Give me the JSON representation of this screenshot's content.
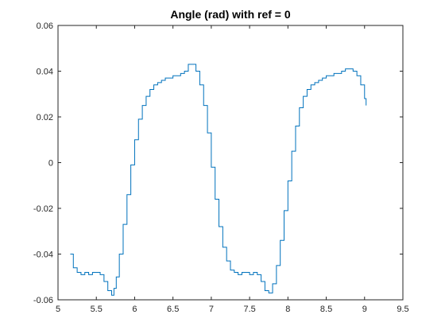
{
  "chart_data": {
    "type": "line",
    "title": "Angle (rad) with ref = 0",
    "xlabel": "",
    "ylabel": "",
    "xlim": [
      5,
      9.5
    ],
    "ylim": [
      -0.06,
      0.06
    ],
    "xticks": [
      5,
      5.5,
      6,
      6.5,
      7,
      7.5,
      8,
      8.5,
      9,
      9.5
    ],
    "xtick_labels": [
      "5",
      "5.5",
      "6",
      "6.5",
      "7",
      "7.5",
      "8",
      "8.5",
      "9",
      "9.5"
    ],
    "yticks": [
      -0.06,
      -0.04,
      -0.02,
      0,
      0.02,
      0.04,
      0.06
    ],
    "ytick_labels": [
      "-0.06",
      "-0.04",
      "-0.02",
      "0",
      "0.02",
      "0.04",
      "0.06"
    ],
    "grid": false,
    "legend": "none",
    "series": [
      {
        "color": "#0072BD",
        "x": [
          5.16,
          5.2,
          5.25,
          5.3,
          5.35,
          5.4,
          5.45,
          5.5,
          5.55,
          5.6,
          5.65,
          5.7,
          5.73,
          5.76,
          5.8,
          5.85,
          5.9,
          5.95,
          6.0,
          6.05,
          6.1,
          6.15,
          6.2,
          6.25,
          6.3,
          6.35,
          6.4,
          6.45,
          6.5,
          6.55,
          6.6,
          6.65,
          6.7,
          6.75,
          6.8,
          6.85,
          6.9,
          6.95,
          7.0,
          7.05,
          7.1,
          7.15,
          7.2,
          7.25,
          7.3,
          7.35,
          7.4,
          7.45,
          7.5,
          7.55,
          7.6,
          7.65,
          7.7,
          7.75,
          7.8,
          7.85,
          7.9,
          7.95,
          8.0,
          8.05,
          8.1,
          8.15,
          8.2,
          8.25,
          8.3,
          8.35,
          8.4,
          8.45,
          8.5,
          8.55,
          8.6,
          8.65,
          8.7,
          8.75,
          8.8,
          8.85,
          8.9,
          8.95,
          9.0,
          9.02
        ],
        "y": [
          -0.04,
          -0.046,
          -0.048,
          -0.049,
          -0.048,
          -0.049,
          -0.048,
          -0.048,
          -0.049,
          -0.052,
          -0.056,
          -0.058,
          -0.055,
          -0.05,
          -0.04,
          -0.027,
          -0.014,
          -0.001,
          0.01,
          0.019,
          0.025,
          0.029,
          0.032,
          0.034,
          0.035,
          0.036,
          0.037,
          0.037,
          0.038,
          0.038,
          0.039,
          0.04,
          0.043,
          0.043,
          0.04,
          0.034,
          0.025,
          0.013,
          -0.002,
          -0.016,
          -0.028,
          -0.037,
          -0.043,
          -0.047,
          -0.048,
          -0.049,
          -0.048,
          -0.048,
          -0.049,
          -0.048,
          -0.049,
          -0.052,
          -0.056,
          -0.057,
          -0.053,
          -0.045,
          -0.034,
          -0.021,
          -0.008,
          0.005,
          0.016,
          0.024,
          0.029,
          0.032,
          0.034,
          0.035,
          0.036,
          0.037,
          0.038,
          0.038,
          0.039,
          0.039,
          0.04,
          0.041,
          0.041,
          0.04,
          0.038,
          0.034,
          0.028,
          0.025
        ]
      }
    ]
  }
}
